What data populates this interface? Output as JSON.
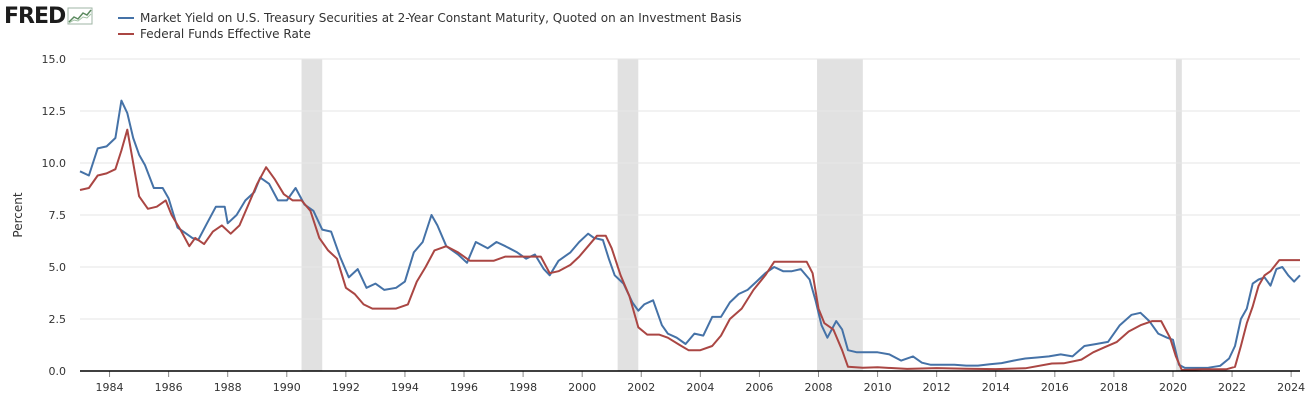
{
  "logo": {
    "text": "FRED"
  },
  "colors": {
    "series1": "#4572a7",
    "series2": "#aa4643",
    "recession": "#e1e1e1",
    "grid": "#e6e6e6",
    "axis": "#000000"
  },
  "chart_data": {
    "type": "line",
    "title": "",
    "xlabel": "",
    "ylabel": "Percent",
    "xlim": [
      1983.0,
      2024.3
    ],
    "ylim": [
      0,
      15
    ],
    "grid": true,
    "legend": "top-left",
    "yticks": [
      "0.0",
      "2.5",
      "5.0",
      "7.5",
      "10.0",
      "12.5",
      "15.0"
    ],
    "xticks": [
      "1984",
      "1986",
      "1988",
      "1990",
      "1992",
      "1994",
      "1996",
      "1998",
      "2000",
      "2002",
      "2004",
      "2006",
      "2008",
      "2010",
      "2012",
      "2014",
      "2016",
      "2018",
      "2020",
      "2022",
      "2024"
    ],
    "recessions": [
      [
        1990.5,
        1991.2
      ],
      [
        2001.2,
        2001.9
      ],
      [
        2007.95,
        2009.5
      ],
      [
        2020.1,
        2020.3
      ]
    ],
    "series": [
      {
        "name": "Market Yield on U.S. Treasury Securities at 2-Year Constant Maturity, Quoted on an Investment Basis",
        "x": [
          1983.0,
          1983.3,
          1983.6,
          1983.9,
          1984.2,
          1984.4,
          1984.6,
          1984.8,
          1985.0,
          1985.2,
          1985.5,
          1985.8,
          1986.0,
          1986.3,
          1986.6,
          1986.8,
          1987.0,
          1987.3,
          1987.6,
          1987.9,
          1988.0,
          1988.3,
          1988.6,
          1988.9,
          1989.1,
          1989.4,
          1989.7,
          1990.0,
          1990.3,
          1990.6,
          1990.9,
          1991.2,
          1991.5,
          1991.8,
          1992.1,
          1992.4,
          1992.7,
          1993.0,
          1993.3,
          1993.7,
          1994.0,
          1994.3,
          1994.6,
          1994.9,
          1995.1,
          1995.4,
          1995.8,
          1996.1,
          1996.4,
          1996.8,
          1997.1,
          1997.4,
          1997.8,
          1998.1,
          1998.4,
          1998.7,
          1998.9,
          1999.2,
          1999.6,
          1999.9,
          2000.2,
          2000.4,
          2000.7,
          2000.9,
          2001.1,
          2001.4,
          2001.7,
          2001.9,
          2002.1,
          2002.4,
          2002.7,
          2002.9,
          2003.2,
          2003.5,
          2003.8,
          2004.1,
          2004.4,
          2004.7,
          2005.0,
          2005.3,
          2005.6,
          2005.9,
          2006.2,
          2006.5,
          2006.8,
          2007.1,
          2007.4,
          2007.7,
          2007.9,
          2008.1,
          2008.3,
          2008.6,
          2008.8,
          2009.0,
          2009.3,
          2009.6,
          2010.0,
          2010.4,
          2010.8,
          2011.2,
          2011.5,
          2011.8,
          2012.2,
          2012.6,
          2013.0,
          2013.4,
          2013.8,
          2014.2,
          2014.6,
          2015.0,
          2015.4,
          2015.8,
          2016.2,
          2016.6,
          2017.0,
          2017.4,
          2017.8,
          2018.2,
          2018.6,
          2018.9,
          2019.2,
          2019.5,
          2019.8,
          2020.0,
          2020.2,
          2020.4,
          2020.8,
          2021.2,
          2021.6,
          2021.9,
          2022.1,
          2022.3,
          2022.5,
          2022.7,
          2022.9,
          2023.1,
          2023.3,
          2023.5,
          2023.7,
          2023.9,
          2024.1,
          2024.3
        ],
        "values": [
          9.6,
          9.4,
          10.7,
          10.8,
          11.2,
          13.0,
          12.4,
          11.2,
          10.4,
          9.9,
          8.8,
          8.8,
          8.3,
          6.9,
          6.6,
          6.4,
          6.3,
          7.1,
          7.9,
          7.9,
          7.1,
          7.5,
          8.2,
          8.6,
          9.3,
          9.0,
          8.2,
          8.2,
          8.8,
          8.0,
          7.7,
          6.8,
          6.7,
          5.5,
          4.5,
          4.9,
          4.0,
          4.2,
          3.9,
          4.0,
          4.3,
          5.7,
          6.2,
          7.5,
          7.0,
          6.0,
          5.6,
          5.2,
          6.2,
          5.9,
          6.2,
          6.0,
          5.7,
          5.4,
          5.6,
          4.9,
          4.6,
          5.3,
          5.7,
          6.2,
          6.6,
          6.4,
          6.3,
          5.4,
          4.6,
          4.2,
          3.3,
          2.9,
          3.2,
          3.4,
          2.2,
          1.8,
          1.6,
          1.3,
          1.8,
          1.7,
          2.6,
          2.6,
          3.3,
          3.7,
          3.9,
          4.3,
          4.7,
          5.0,
          4.8,
          4.8,
          4.9,
          4.4,
          3.4,
          2.2,
          1.6,
          2.4,
          2.0,
          1.0,
          0.9,
          0.9,
          0.9,
          0.8,
          0.5,
          0.7,
          0.4,
          0.3,
          0.3,
          0.3,
          0.26,
          0.26,
          0.32,
          0.38,
          0.5,
          0.6,
          0.65,
          0.7,
          0.8,
          0.7,
          1.2,
          1.3,
          1.4,
          2.2,
          2.7,
          2.8,
          2.4,
          1.8,
          1.6,
          1.5,
          0.3,
          0.15,
          0.15,
          0.16,
          0.25,
          0.6,
          1.2,
          2.5,
          3.0,
          4.2,
          4.4,
          4.5,
          4.1,
          4.9,
          5.0,
          4.6,
          4.3,
          4.6
        ]
      },
      {
        "name": "Federal Funds Effective Rate",
        "x": [
          1983.0,
          1983.3,
          1983.6,
          1983.9,
          1984.2,
          1984.4,
          1984.6,
          1984.8,
          1985.0,
          1985.3,
          1985.6,
          1985.9,
          1986.1,
          1986.4,
          1986.7,
          1986.9,
          1987.2,
          1987.5,
          1987.8,
          1988.1,
          1988.4,
          1988.7,
          1989.0,
          1989.3,
          1989.6,
          1989.9,
          1990.2,
          1990.5,
          1990.8,
          1991.1,
          1991.4,
          1991.7,
          1992.0,
          1992.3,
          1992.6,
          1992.9,
          1993.3,
          1993.7,
          1994.1,
          1994.4,
          1994.7,
          1995.0,
          1995.4,
          1995.8,
          1996.2,
          1996.6,
          1997.0,
          1997.4,
          1997.8,
          1998.2,
          1998.6,
          1998.9,
          1999.2,
          1999.6,
          1999.9,
          2000.2,
          2000.5,
          2000.8,
          2001.0,
          2001.3,
          2001.6,
          2001.9,
          2002.2,
          2002.6,
          2002.9,
          2003.3,
          2003.6,
          2004.0,
          2004.4,
          2004.7,
          2005.0,
          2005.4,
          2005.8,
          2006.2,
          2006.5,
          2006.8,
          2007.2,
          2007.6,
          2007.8,
          2008.0,
          2008.2,
          2008.5,
          2008.8,
          2009.0,
          2009.5,
          2010.0,
          2011.0,
          2012.0,
          2013.0,
          2014.0,
          2015.0,
          2015.9,
          2016.3,
          2016.9,
          2017.3,
          2017.7,
          2018.1,
          2018.5,
          2018.9,
          2019.3,
          2019.6,
          2019.9,
          2020.1,
          2020.3,
          2021.0,
          2021.8,
          2022.1,
          2022.3,
          2022.5,
          2022.7,
          2022.9,
          2023.1,
          2023.3,
          2023.6,
          2024.3
        ],
        "values": [
          8.7,
          8.8,
          9.4,
          9.5,
          9.7,
          10.6,
          11.6,
          10.0,
          8.4,
          7.8,
          7.9,
          8.2,
          7.5,
          6.8,
          6.0,
          6.4,
          6.1,
          6.7,
          7.0,
          6.6,
          7.0,
          8.0,
          9.0,
          9.8,
          9.2,
          8.5,
          8.2,
          8.2,
          7.7,
          6.4,
          5.8,
          5.4,
          4.0,
          3.7,
          3.2,
          3.0,
          3.0,
          3.0,
          3.2,
          4.3,
          5.0,
          5.8,
          6.0,
          5.7,
          5.3,
          5.3,
          5.3,
          5.5,
          5.5,
          5.5,
          5.5,
          4.7,
          4.8,
          5.1,
          5.5,
          6.0,
          6.5,
          6.5,
          5.9,
          4.6,
          3.6,
          2.1,
          1.75,
          1.75,
          1.6,
          1.25,
          1.0,
          1.0,
          1.2,
          1.7,
          2.5,
          3.0,
          3.9,
          4.6,
          5.25,
          5.25,
          5.25,
          5.25,
          4.7,
          3.0,
          2.3,
          2.0,
          1.0,
          0.2,
          0.16,
          0.18,
          0.1,
          0.14,
          0.11,
          0.09,
          0.13,
          0.36,
          0.37,
          0.55,
          0.9,
          1.15,
          1.4,
          1.9,
          2.2,
          2.4,
          2.4,
          1.6,
          0.7,
          0.05,
          0.08,
          0.08,
          0.2,
          1.2,
          2.3,
          3.1,
          4.1,
          4.6,
          4.8,
          5.33,
          5.33
        ]
      }
    ]
  }
}
